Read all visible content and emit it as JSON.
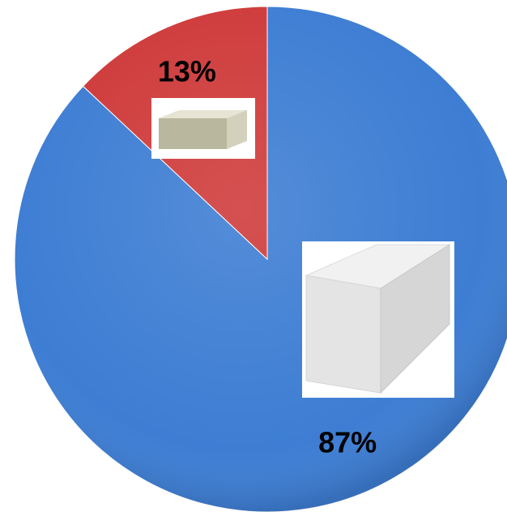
{
  "chart_data": {
    "type": "pie",
    "values": [
      87,
      13
    ],
    "value_labels": [
      "87%",
      "13%"
    ],
    "colors": [
      "#3d7dd3",
      "#cf3a3a"
    ]
  }
}
